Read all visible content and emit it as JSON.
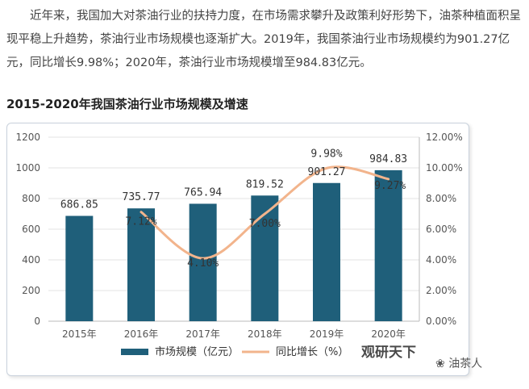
{
  "article": {
    "paragraph": "近年来，我国加大对茶油行业的扶持力度，在市场需求攀升及政策利好形势下，油茶种植面积呈现平稳上升趋势，茶油行业市场规模也逐渐扩大。2019年，我国茶油行业市场规模约为901.27亿元，同比增长9.98%；2020年，茶油行业市场规模增至984.83亿元。",
    "chart_heading": "2015-2020年我国茶油行业市场规模及增速"
  },
  "watermark": {
    "brand": "观研天下",
    "channel": "油茶人"
  },
  "colors": {
    "bar": "#1f5f7a",
    "line": "#f2b48c",
    "grid": "#e3e3e3",
    "axis_text": "#555555"
  },
  "chart_data": {
    "type": "bar",
    "categories": [
      "2015年",
      "2016年",
      "2017年",
      "2018年",
      "2019年",
      "2020年"
    ],
    "series": [
      {
        "name": "市场规模（亿元）",
        "type": "bar",
        "axis": "left",
        "values": [
          686.85,
          735.77,
          765.94,
          819.52,
          901.27,
          984.83
        ],
        "labels": [
          "686.85",
          "735.77",
          "765.94",
          "819.52",
          "901.27",
          "984.83"
        ]
      },
      {
        "name": "同比增长（%）",
        "type": "line",
        "axis": "right",
        "values": [
          null,
          7.12,
          4.1,
          7.0,
          9.98,
          9.27
        ],
        "labels": [
          "",
          "7.12%",
          "4.10%",
          "7.00%",
          "9.98%",
          "9.27%"
        ]
      }
    ],
    "y_left": {
      "range": [
        0,
        1200
      ],
      "ticks": [
        "0",
        "200",
        "400",
        "600",
        "800",
        "1000",
        "1200"
      ]
    },
    "y_right": {
      "range": [
        0,
        12
      ],
      "ticks": [
        "0.00%",
        "2.00%",
        "4.00%",
        "6.00%",
        "8.00%",
        "10.00%",
        "12.00%"
      ]
    },
    "grid": true,
    "legend_position": "bottom"
  }
}
